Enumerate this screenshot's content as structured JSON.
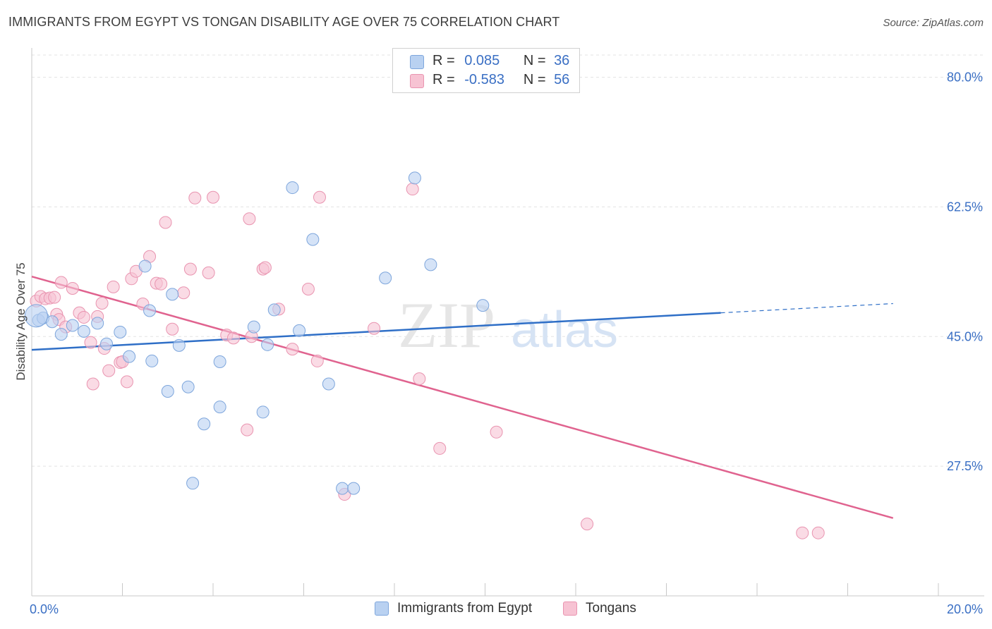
{
  "title": "IMMIGRANTS FROM EGYPT VS TONGAN DISABILITY AGE OVER 75 CORRELATION CHART",
  "source": "Source: ZipAtlas.com",
  "watermark": {
    "zip": "ZIP",
    "atlas": "atlas"
  },
  "legend": {
    "r_label": "R =",
    "n_label": "N =",
    "entries": [
      {
        "r": "0.085",
        "n": "36"
      },
      {
        "r": "-0.583",
        "n": "56"
      }
    ]
  },
  "colors": {
    "blue_fill": "#b9d1f1",
    "blue_stroke": "#7ea6dc",
    "blue_line": "#2f6fc7",
    "pink_fill": "#f7c3d3",
    "pink_stroke": "#e994b0",
    "pink_line": "#e0638f",
    "axis_label": "#3a6fc4"
  },
  "chart_data": {
    "type": "scatter",
    "title": "IMMIGRANTS FROM EGYPT VS TONGAN DISABILITY AGE OVER 75 CORRELATION CHART",
    "xlabel": "",
    "ylabel": "Disability Age Over 75",
    "xlim": [
      0,
      20
    ],
    "ylim": [
      10,
      83
    ],
    "x_tick_labels": [
      "0.0%",
      "20.0%"
    ],
    "y_ticks": [
      27.5,
      45.0,
      62.5,
      80.0
    ],
    "y_tick_labels": [
      "27.5%",
      "45.0%",
      "62.5%",
      "80.0%"
    ],
    "grid": true,
    "legend_position": "top-center",
    "series": [
      {
        "name": "Immigrants from Egypt",
        "r": 0.085,
        "n": 36,
        "trend": {
          "x0": 0,
          "y0": 43.2,
          "x1": 15.2,
          "y1": 48.2,
          "dashed_to_x": 19.0,
          "dashed_to_y": 49.45
        },
        "points": [
          [
            0.15,
            47.2
          ],
          [
            0.25,
            47.5
          ],
          [
            0.45,
            47.0
          ],
          [
            0.65,
            45.3
          ],
          [
            0.9,
            46.5
          ],
          [
            1.15,
            45.7
          ],
          [
            1.45,
            46.8
          ],
          [
            1.65,
            44.0
          ],
          [
            1.95,
            45.6
          ],
          [
            2.15,
            42.3
          ],
          [
            2.5,
            54.5
          ],
          [
            2.6,
            48.5
          ],
          [
            2.65,
            41.7
          ],
          [
            3.0,
            37.6
          ],
          [
            3.1,
            50.7
          ],
          [
            3.25,
            43.8
          ],
          [
            3.45,
            38.2
          ],
          [
            3.55,
            25.2
          ],
          [
            3.8,
            33.2
          ],
          [
            4.15,
            35.5
          ],
          [
            4.15,
            41.6
          ],
          [
            4.9,
            46.3
          ],
          [
            5.1,
            34.8
          ],
          [
            5.2,
            43.9
          ],
          [
            5.35,
            48.6
          ],
          [
            5.75,
            65.1
          ],
          [
            5.9,
            45.8
          ],
          [
            6.2,
            58.1
          ],
          [
            6.55,
            38.6
          ],
          [
            6.85,
            24.5
          ],
          [
            7.1,
            24.5
          ],
          [
            7.8,
            52.9
          ],
          [
            8.45,
            66.4
          ],
          [
            8.8,
            54.7
          ],
          [
            9.95,
            49.2
          ],
          [
            0.1,
            47.8
          ]
        ]
      },
      {
        "name": "Tongans",
        "r": -0.583,
        "n": 56,
        "trend": {
          "x0": 0,
          "y0": 53.1,
          "x1": 19.0,
          "y1": 20.5
        },
        "points": [
          [
            0.1,
            49.8
          ],
          [
            0.2,
            50.4
          ],
          [
            0.3,
            50.1
          ],
          [
            0.4,
            50.2
          ],
          [
            0.5,
            50.3
          ],
          [
            0.55,
            48.0
          ],
          [
            0.6,
            47.3
          ],
          [
            0.65,
            52.3
          ],
          [
            0.75,
            46.3
          ],
          [
            0.9,
            51.5
          ],
          [
            1.05,
            48.2
          ],
          [
            1.15,
            47.6
          ],
          [
            1.3,
            44.2
          ],
          [
            1.35,
            38.6
          ],
          [
            1.45,
            47.7
          ],
          [
            1.55,
            49.5
          ],
          [
            1.6,
            43.4
          ],
          [
            1.7,
            40.4
          ],
          [
            1.8,
            51.7
          ],
          [
            1.95,
            41.5
          ],
          [
            2.0,
            41.6
          ],
          [
            2.1,
            38.9
          ],
          [
            2.2,
            52.8
          ],
          [
            2.3,
            53.8
          ],
          [
            2.45,
            49.4
          ],
          [
            2.6,
            55.8
          ],
          [
            2.75,
            52.2
          ],
          [
            2.85,
            52.1
          ],
          [
            2.95,
            60.4
          ],
          [
            3.1,
            46.0
          ],
          [
            3.35,
            50.9
          ],
          [
            3.5,
            54.1
          ],
          [
            3.6,
            63.7
          ],
          [
            3.9,
            53.6
          ],
          [
            4.0,
            63.8
          ],
          [
            4.3,
            45.2
          ],
          [
            4.45,
            44.8
          ],
          [
            4.75,
            32.4
          ],
          [
            4.8,
            60.9
          ],
          [
            5.1,
            54.1
          ],
          [
            5.15,
            54.3
          ],
          [
            5.45,
            48.7
          ],
          [
            5.75,
            43.3
          ],
          [
            6.1,
            51.4
          ],
          [
            6.3,
            41.7
          ],
          [
            6.35,
            63.8
          ],
          [
            6.9,
            23.7
          ],
          [
            7.55,
            46.1
          ],
          [
            8.4,
            64.9
          ],
          [
            8.55,
            39.3
          ],
          [
            9.0,
            29.9
          ],
          [
            10.25,
            32.1
          ],
          [
            12.25,
            19.7
          ],
          [
            17.0,
            18.5
          ],
          [
            17.35,
            18.5
          ],
          [
            4.85,
            45.0
          ]
        ]
      }
    ]
  },
  "bottom_legend": [
    {
      "label": "Immigrants from Egypt"
    },
    {
      "label": "Tongans"
    }
  ]
}
